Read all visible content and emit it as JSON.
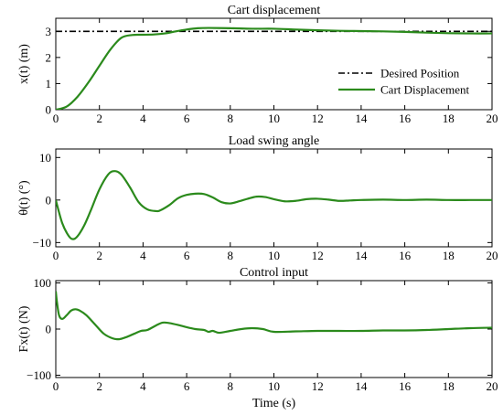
{
  "chart_data": [
    {
      "type": "line",
      "title": "Cart displacement",
      "ylabel": "x(t) (m)",
      "xlabel": "",
      "xlim": [
        0,
        20
      ],
      "ylim": [
        0,
        3.5
      ],
      "xticks": [
        "0",
        "2",
        "4",
        "6",
        "8",
        "10",
        "12",
        "14",
        "16",
        "18",
        "20"
      ],
      "yticks": [
        "0",
        "1",
        "2",
        "3"
      ],
      "legend_position": "right",
      "series": [
        {
          "name": "Desired Position",
          "color": "#000000",
          "style": "dashdot",
          "x": [
            0,
            20
          ],
          "values": [
            3,
            3
          ]
        },
        {
          "name": "Cart Displacement",
          "color": "#2b8a1c",
          "style": "solid",
          "x": [
            0,
            0.5,
            1,
            1.5,
            2,
            2.5,
            3,
            3.5,
            4,
            4.5,
            5,
            5.5,
            6,
            6.5,
            7,
            8,
            9,
            10,
            11,
            12,
            13,
            14,
            15,
            16,
            17,
            18,
            19,
            20
          ],
          "values": [
            0,
            0.12,
            0.5,
            1.05,
            1.68,
            2.3,
            2.75,
            2.86,
            2.87,
            2.88,
            2.92,
            3.0,
            3.07,
            3.12,
            3.13,
            3.12,
            3.1,
            3.1,
            3.07,
            3.04,
            3.02,
            3.01,
            3.0,
            2.98,
            2.95,
            2.93,
            2.92,
            2.92
          ]
        }
      ]
    },
    {
      "type": "line",
      "title": "Load swing angle",
      "ylabel": "θ(t) (°)",
      "xlabel": "",
      "xlim": [
        0,
        20
      ],
      "ylim": [
        -11,
        12
      ],
      "xticks": [
        "0",
        "2",
        "4",
        "6",
        "8",
        "10",
        "12",
        "14",
        "16",
        "18",
        "20"
      ],
      "yticks": [
        "-10",
        "0",
        "10"
      ],
      "series": [
        {
          "name": "",
          "color": "#2b8a1c",
          "style": "solid",
          "x": [
            0,
            0.3,
            0.6,
            0.8,
            1.0,
            1.3,
            1.6,
            2.0,
            2.4,
            2.7,
            3.0,
            3.4,
            3.8,
            4.2,
            4.6,
            4.8,
            5.2,
            5.6,
            6.0,
            6.4,
            6.8,
            7.2,
            7.6,
            8.0,
            8.4,
            8.8,
            9.2,
            9.6,
            10.0,
            10.5,
            11.0,
            11.5,
            12.0,
            12.5,
            13.0,
            13.5,
            14.0,
            15.0,
            16.0,
            17.0,
            18.0,
            19.0,
            20.0
          ],
          "values": [
            0,
            -5.5,
            -8.5,
            -9.2,
            -8.5,
            -6.0,
            -2.5,
            2.5,
            6.0,
            6.8,
            6.0,
            3.0,
            -0.5,
            -2.2,
            -2.6,
            -2.4,
            -1.2,
            0.4,
            1.2,
            1.5,
            1.4,
            0.6,
            -0.5,
            -0.8,
            -0.3,
            0.3,
            0.8,
            0.7,
            0.2,
            -0.3,
            -0.2,
            0.2,
            0.3,
            0.1,
            -0.2,
            -0.1,
            0.0,
            0.1,
            0.0,
            0.1,
            0.0,
            0.0,
            0.0
          ]
        }
      ]
    },
    {
      "type": "line",
      "title": "Control input",
      "ylabel": "Fx(t) (N)",
      "xlabel": "Time (s)",
      "xlim": [
        0,
        20
      ],
      "ylim": [
        -105,
        105
      ],
      "xticks": [
        "0",
        "2",
        "4",
        "6",
        "8",
        "10",
        "12",
        "14",
        "16",
        "18",
        "20"
      ],
      "yticks": [
        "-100",
        "0",
        "100"
      ],
      "series": [
        {
          "name": "",
          "color": "#2b8a1c",
          "style": "solid",
          "x": [
            0,
            0.05,
            0.15,
            0.3,
            0.5,
            0.7,
            0.9,
            1.1,
            1.4,
            1.8,
            2.2,
            2.6,
            2.9,
            3.2,
            3.6,
            3.9,
            4.2,
            4.6,
            4.9,
            5.2,
            5.6,
            6.0,
            6.4,
            6.8,
            7.0,
            7.2,
            7.5,
            8.0,
            8.5,
            9.0,
            9.5,
            10.0,
            11.0,
            12.0,
            13.0,
            14.0,
            15.0,
            16.0,
            17.0,
            18.0,
            19.0,
            20.0
          ],
          "values": [
            82,
            60,
            30,
            22,
            30,
            40,
            43,
            40,
            30,
            10,
            -10,
            -20,
            -22,
            -18,
            -10,
            -4,
            -2,
            8,
            14,
            13,
            9,
            4,
            0,
            -2,
            -6,
            -4,
            -8,
            -4,
            0,
            2,
            0,
            -6,
            -5,
            -4,
            -4,
            -4,
            -3,
            -3,
            -2,
            0,
            2,
            3
          ]
        }
      ]
    }
  ]
}
